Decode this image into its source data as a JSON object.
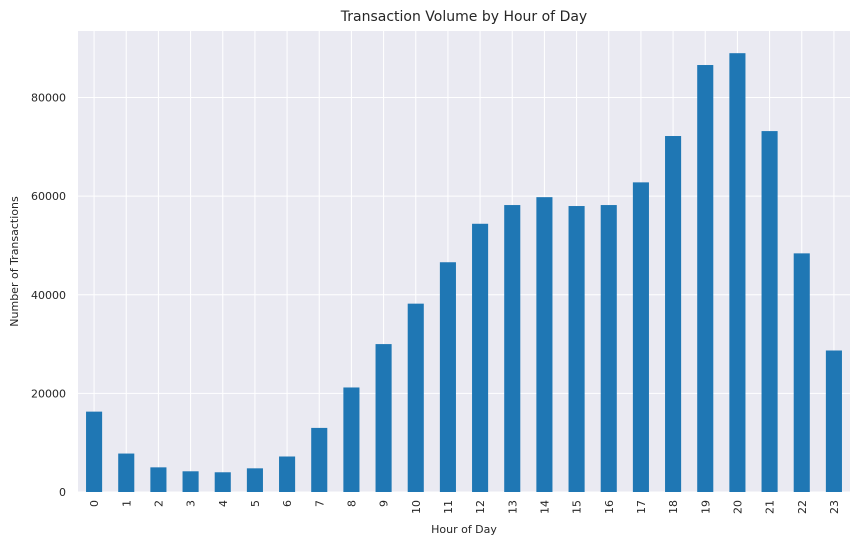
{
  "chart_data": {
    "type": "bar",
    "title": "Transaction Volume by Hour of Day",
    "xlabel": "Hour of Day",
    "ylabel": "Number of Transactions",
    "categories": [
      "0",
      "1",
      "2",
      "3",
      "4",
      "5",
      "6",
      "7",
      "8",
      "9",
      "10",
      "11",
      "12",
      "13",
      "14",
      "15",
      "16",
      "17",
      "18",
      "19",
      "20",
      "21",
      "22",
      "23"
    ],
    "values": [
      16300,
      7800,
      5000,
      4200,
      4000,
      4800,
      7200,
      13000,
      21200,
      30000,
      38200,
      46600,
      54400,
      58200,
      59800,
      58000,
      58200,
      62800,
      72200,
      86600,
      89000,
      73200,
      48400,
      28700
    ],
    "ylim": [
      0,
      93500
    ],
    "yticks": [
      0,
      20000,
      40000,
      60000,
      80000
    ],
    "grid": true,
    "legend": "none",
    "colors": {
      "bar": "#1f77b4",
      "background": "#eaeaf2",
      "grid": "#ffffff"
    }
  }
}
